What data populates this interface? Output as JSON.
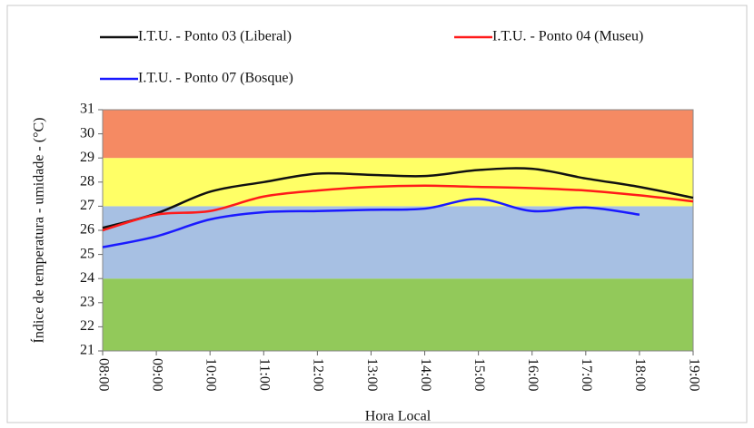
{
  "chart_data": {
    "type": "line",
    "xlabel": "Hora  Local",
    "ylabel": "Índice de temperatura - umidade - (°C)",
    "categories": [
      "08:00",
      "09:00",
      "10:00",
      "11:00",
      "12:00",
      "13:00",
      "14:00",
      "15:00",
      "16:00",
      "17:00",
      "18:00",
      "19:00"
    ],
    "series": [
      {
        "name": "I.T.U. - Ponto 03 (Liberal)",
        "color": "#111111",
        "values": [
          26.1,
          26.7,
          27.6,
          28.0,
          28.35,
          28.3,
          28.25,
          28.5,
          28.55,
          28.15,
          27.8,
          27.35
        ]
      },
      {
        "name": "I.T.U. - Ponto 04 (Museu)",
        "color": "#ff1a1a",
        "values": [
          26.0,
          26.65,
          26.8,
          27.4,
          27.65,
          27.8,
          27.85,
          27.8,
          27.75,
          27.65,
          27.45,
          27.2
        ]
      },
      {
        "name": "I.T.U. - Ponto 07 (Bosque)",
        "color": "#1a1aff",
        "values": [
          25.3,
          25.75,
          26.45,
          26.75,
          26.8,
          26.85,
          26.9,
          27.3,
          26.8,
          26.95,
          26.65,
          null
        ]
      }
    ],
    "bands": [
      {
        "from": 21,
        "to": 24,
        "color": "#92c95a"
      },
      {
        "from": 24,
        "to": 27,
        "color": "#a7c0e3"
      },
      {
        "from": 27,
        "to": 29,
        "color": "#ffff66"
      },
      {
        "from": 29,
        "to": 31,
        "color": "#f58a63"
      }
    ],
    "ylim": [
      21,
      31
    ],
    "yticks": [
      21,
      22,
      23,
      24,
      25,
      26,
      27,
      28,
      29,
      30,
      31
    ]
  }
}
